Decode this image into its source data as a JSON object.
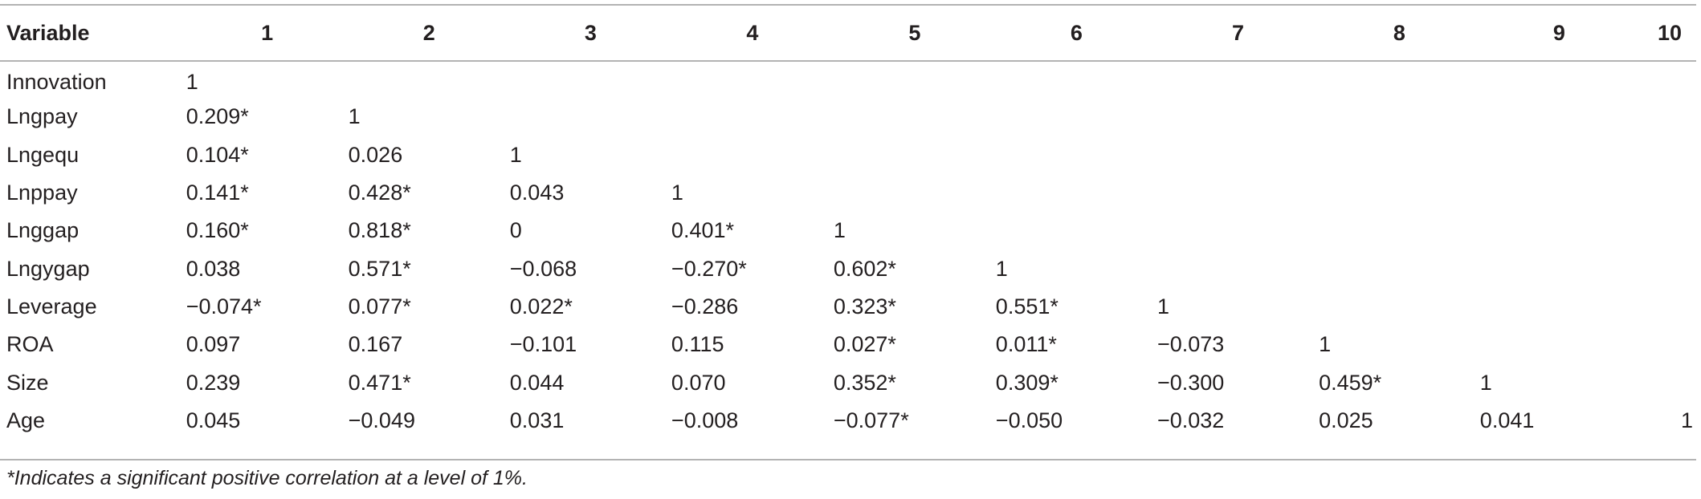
{
  "table": {
    "header": [
      "Variable",
      "1",
      "2",
      "3",
      "4",
      "5",
      "6",
      "7",
      "8",
      "9",
      "10"
    ],
    "rows": [
      {
        "variable": "Innovation",
        "values": [
          "1",
          "",
          "",
          "",
          "",
          "",
          "",
          "",
          "",
          ""
        ]
      },
      {
        "variable": "Lngpay",
        "values": [
          "0.209*",
          "1",
          "",
          "",
          "",
          "",
          "",
          "",
          "",
          ""
        ]
      },
      {
        "variable": "Lngequ",
        "values": [
          "0.104*",
          "0.026",
          "1",
          "",
          "",
          "",
          "",
          "",
          "",
          ""
        ]
      },
      {
        "variable": "Lnppay",
        "values": [
          "0.141*",
          "0.428*",
          "0.043",
          "1",
          "",
          "",
          "",
          "",
          "",
          ""
        ]
      },
      {
        "variable": "Lnggap",
        "values": [
          "0.160*",
          "0.818*",
          "0",
          "0.401*",
          "1",
          "",
          "",
          "",
          "",
          ""
        ]
      },
      {
        "variable": "Lngygap",
        "values": [
          "0.038",
          "0.571*",
          "−0.068",
          "−0.270*",
          "0.602*",
          "1",
          "",
          "",
          "",
          ""
        ]
      },
      {
        "variable": "Leverage",
        "values": [
          "−0.074*",
          "0.077*",
          "0.022*",
          "−0.286",
          "0.323*",
          "0.551*",
          "1",
          "",
          "",
          ""
        ]
      },
      {
        "variable": "ROA",
        "values": [
          "0.097",
          "0.167",
          "−0.101",
          "0.115",
          "0.027*",
          "0.011*",
          "−0.073",
          "1",
          "",
          ""
        ]
      },
      {
        "variable": "Size",
        "values": [
          "0.239",
          "0.471*",
          "0.044",
          "0.070",
          "0.352*",
          "0.309*",
          "−0.300",
          "0.459*",
          "1",
          ""
        ]
      },
      {
        "variable": "Age",
        "values": [
          "0.045",
          "−0.049",
          "0.031",
          "−0.008",
          "−0.077*",
          "−0.050",
          "−0.032",
          "0.025",
          "0.041",
          "1"
        ]
      }
    ]
  },
  "footnote": "*Indicates a significant positive correlation at a level of 1%."
}
